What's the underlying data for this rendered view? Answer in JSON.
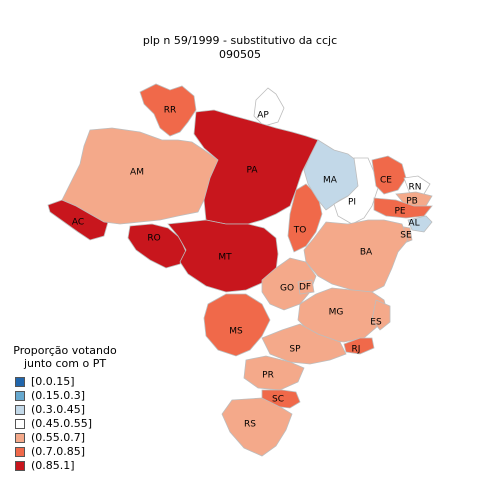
{
  "title": {
    "line1": "plp  n  59/1999 - substitutivo da ccjc",
    "line2": "090505"
  },
  "legend": {
    "title_line1": "Proporção votando",
    "title_line2": "junto com o PT",
    "classes": [
      {
        "label": "[0.0.15]",
        "color": "#2166ac"
      },
      {
        "label": "(0.15.0.3]",
        "color": "#67a9cf"
      },
      {
        "label": "(0.3.0.45]",
        "color": "#c2d8e8"
      },
      {
        "label": "(0.45.0.55]",
        "color": "#ffffff"
      },
      {
        "label": "(0.55.0.7]",
        "color": "#f4a98a"
      },
      {
        "label": "(0.7.0.85]",
        "color": "#f0694a"
      },
      {
        "label": "(0.85.1]",
        "color": "#c8161d"
      }
    ]
  },
  "states": [
    {
      "abbr": "AC",
      "class": 6
    },
    {
      "abbr": "AM",
      "class": 4
    },
    {
      "abbr": "RR",
      "class": 5
    },
    {
      "abbr": "AP",
      "class": 3
    },
    {
      "abbr": "PA",
      "class": 6
    },
    {
      "abbr": "RO",
      "class": 6
    },
    {
      "abbr": "MT",
      "class": 6
    },
    {
      "abbr": "TO",
      "class": 5
    },
    {
      "abbr": "MA",
      "class": 2
    },
    {
      "abbr": "PI",
      "class": 3
    },
    {
      "abbr": "CE",
      "class": 5
    },
    {
      "abbr": "RN",
      "class": 3
    },
    {
      "abbr": "PB",
      "class": 4
    },
    {
      "abbr": "PE",
      "class": 5
    },
    {
      "abbr": "AL",
      "class": 2
    },
    {
      "abbr": "SE",
      "class": 4
    },
    {
      "abbr": "BA",
      "class": 4
    },
    {
      "abbr": "GO",
      "class": 4
    },
    {
      "abbr": "DF",
      "class": 4
    },
    {
      "abbr": "MG",
      "class": 4
    },
    {
      "abbr": "ES",
      "class": 4
    },
    {
      "abbr": "RJ",
      "class": 5
    },
    {
      "abbr": "SP",
      "class": 4
    },
    {
      "abbr": "MS",
      "class": 5
    },
    {
      "abbr": "PR",
      "class": 4
    },
    {
      "abbr": "SC",
      "class": 5
    },
    {
      "abbr": "RS",
      "class": 4
    }
  ]
}
